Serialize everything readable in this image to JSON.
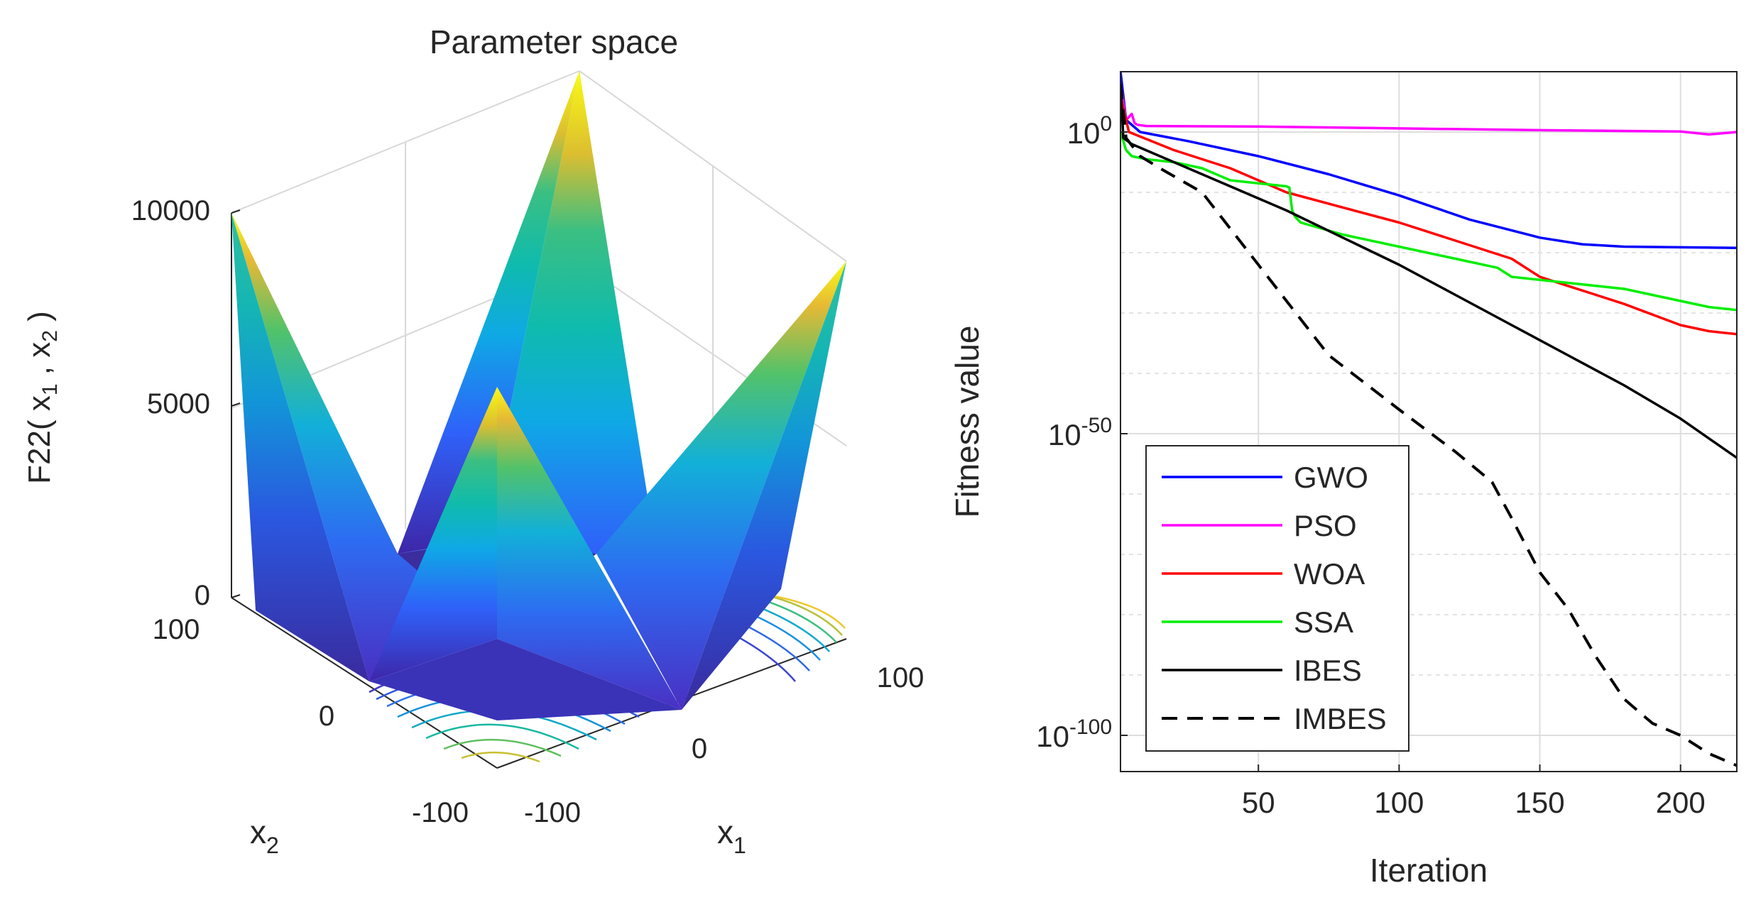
{
  "chart_data": [
    {
      "type": "surface3d",
      "title": "Parameter space",
      "zlabel": {
        "base": "F22(",
        "x1": "x",
        "x1sub": "1",
        "comma": ",",
        "x2": "x",
        "x2sub": "2",
        "close": ")"
      },
      "xlabel": {
        "base": "x",
        "sub": "1"
      },
      "ylabel": {
        "base": "x",
        "sub": "2"
      },
      "zticks": [
        "0",
        "5000",
        "10000"
      ],
      "zlim": [
        0,
        10000
      ],
      "x1ticks": [
        "-100",
        "0",
        "100"
      ],
      "x2ticks": [
        "-100",
        "0",
        "100"
      ],
      "xlim": [
        -100,
        100
      ],
      "ylim": [
        -100,
        100
      ],
      "colormap": [
        "#3e26a8",
        "#2f61f9",
        "#0fa8e6",
        "#0fbbad",
        "#3bbf82",
        "#98c43d",
        "#dcbe30",
        "#fcd02d",
        "#f9fb15"
      ],
      "contour_color_range": [
        "#3e26a8",
        "#f9fb15"
      ]
    },
    {
      "type": "line",
      "yscale": "log",
      "xlabel": "Iteration",
      "ylabel": "Fitness value",
      "xlim": [
        1,
        220
      ],
      "xticks": [
        "50",
        "100",
        "150",
        "200"
      ],
      "ylim_log10": [
        -106,
        10
      ],
      "yticks": [
        {
          "base": "10",
          "exp": "0"
        },
        {
          "base": "10",
          "exp": "-50"
        },
        {
          "base": "10",
          "exp": "-100"
        }
      ],
      "grid": true,
      "legend_position": "bottom-left",
      "series": [
        {
          "name": "GWO",
          "color": "#0000ff",
          "style": "solid",
          "x": [
            1,
            3,
            8,
            25,
            50,
            75,
            100,
            125,
            150,
            165,
            180,
            200,
            220
          ],
          "log10_y": [
            10,
            2,
            0,
            -1.5,
            -4,
            -7,
            -10.5,
            -14.5,
            -17.5,
            -18.6,
            -19,
            -19.1,
            -19.2
          ]
        },
        {
          "name": "PSO",
          "color": "#ff00ff",
          "style": "solid",
          "x": [
            1,
            3,
            5,
            6,
            7,
            10,
            50,
            100,
            150,
            200,
            210,
            220
          ],
          "log10_y": [
            8,
            2,
            3,
            1.5,
            1.2,
            1,
            0.9,
            0.6,
            0.3,
            0.1,
            -0.4,
            0
          ]
        },
        {
          "name": "WOA",
          "color": "#ff0000",
          "style": "solid",
          "x": [
            1,
            4,
            20,
            40,
            60,
            80,
            100,
            120,
            140,
            150,
            160,
            170,
            180,
            200,
            210,
            220
          ],
          "log10_y": [
            6,
            0,
            -3,
            -6,
            -10,
            -12.5,
            -15,
            -18,
            -21,
            -24,
            -25.5,
            -27,
            -28.5,
            -32,
            -33,
            -33.5
          ]
        },
        {
          "name": "SSA",
          "color": "#00ee00",
          "style": "solid",
          "x": [
            1,
            3,
            5,
            10,
            20,
            30,
            40,
            60,
            61,
            62,
            63,
            65,
            80,
            100,
            120,
            135,
            140,
            160,
            180,
            200,
            210,
            220
          ],
          "log10_y": [
            0,
            -3,
            -4,
            -4.5,
            -5,
            -6,
            -8,
            -9,
            -9.2,
            -13,
            -14,
            -15,
            -17,
            -19,
            -21,
            -22.5,
            -24,
            -25,
            -26,
            -28,
            -29,
            -29.5
          ]
        },
        {
          "name": "IBES",
          "color": "#000000",
          "style": "solid",
          "x": [
            1,
            2,
            5,
            20,
            40,
            60,
            80,
            100,
            120,
            140,
            160,
            180,
            200,
            220
          ],
          "log10_y": [
            8,
            -1,
            -2,
            -5,
            -9,
            -13,
            -17.5,
            -22,
            -27,
            -32,
            -37,
            -42,
            -47.5,
            -54
          ]
        },
        {
          "name": "IMBES",
          "color": "#000000",
          "style": "dashed",
          "x": [
            1,
            3,
            8,
            15,
            30,
            45,
            60,
            75,
            100,
            120,
            133,
            140,
            150,
            160,
            170,
            180,
            190,
            200,
            210,
            220
          ],
          "log10_y": [
            8,
            -1,
            -4,
            -6,
            -10,
            -19,
            -28,
            -37,
            -46,
            -53,
            -58,
            -64,
            -73,
            -79,
            -87,
            -94,
            -98,
            -100,
            -103,
            -105
          ]
        }
      ]
    }
  ]
}
